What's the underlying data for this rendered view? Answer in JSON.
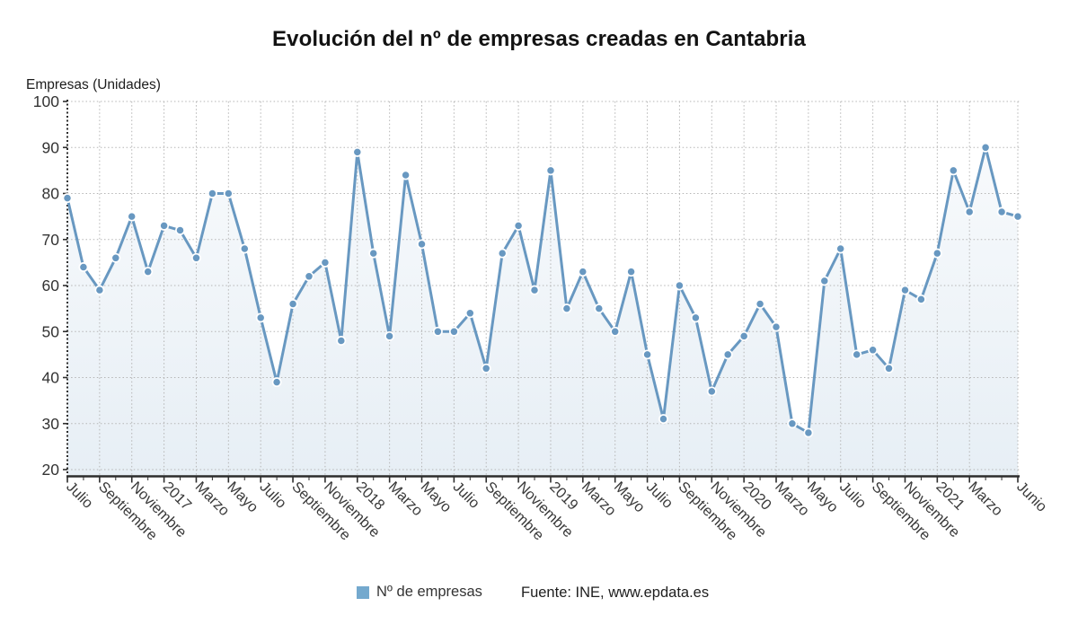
{
  "chart_data": {
    "type": "line",
    "title": "Evolución del nº de empresas creadas en Cantabria",
    "ylabel": "Empresas (Unidades)",
    "xlabel": "",
    "ylim": [
      20,
      100
    ],
    "y_ticks": [
      20,
      30,
      40,
      50,
      60,
      70,
      80,
      90,
      100
    ],
    "grid": true,
    "legend_position": "bottom",
    "series_name": "Nº de empresas",
    "n_points": 60,
    "x_range_note": "monthly points, Julio 2016 - Junio 2021",
    "values": [
      79,
      64,
      59,
      66,
      75,
      63,
      73,
      72,
      66,
      80,
      80,
      68,
      53,
      39,
      56,
      62,
      65,
      48,
      89,
      67,
      49,
      84,
      69,
      50,
      50,
      54,
      42,
      67,
      73,
      59,
      85,
      55,
      63,
      55,
      50,
      63,
      45,
      31,
      60,
      53,
      37,
      45,
      49,
      56,
      51,
      30,
      28,
      61,
      68,
      45,
      46,
      42,
      59,
      57,
      67,
      85,
      76,
      90,
      76,
      75
    ],
    "x_tick_labels": [
      {
        "i": 0,
        "label": "Julio"
      },
      {
        "i": 2,
        "label": "Septiembre"
      },
      {
        "i": 4,
        "label": "Noviembre"
      },
      {
        "i": 6,
        "label": "2017"
      },
      {
        "i": 8,
        "label": "Marzo"
      },
      {
        "i": 10,
        "label": "Mayo"
      },
      {
        "i": 12,
        "label": "Julio"
      },
      {
        "i": 14,
        "label": "Septiembre"
      },
      {
        "i": 16,
        "label": "Noviembre"
      },
      {
        "i": 18,
        "label": "2018"
      },
      {
        "i": 20,
        "label": "Marzo"
      },
      {
        "i": 22,
        "label": "Mayo"
      },
      {
        "i": 24,
        "label": "Julio"
      },
      {
        "i": 26,
        "label": "Septiembre"
      },
      {
        "i": 28,
        "label": "Noviembre"
      },
      {
        "i": 30,
        "label": "2019"
      },
      {
        "i": 32,
        "label": "Marzo"
      },
      {
        "i": 34,
        "label": "Mayo"
      },
      {
        "i": 36,
        "label": "Julio"
      },
      {
        "i": 38,
        "label": "Septiembre"
      },
      {
        "i": 40,
        "label": "Noviembre"
      },
      {
        "i": 42,
        "label": "2020"
      },
      {
        "i": 44,
        "label": "Marzo"
      },
      {
        "i": 46,
        "label": "Mayo"
      },
      {
        "i": 48,
        "label": "Julio"
      },
      {
        "i": 50,
        "label": "Septiembre"
      },
      {
        "i": 52,
        "label": "Noviembre"
      },
      {
        "i": 54,
        "label": "2021"
      },
      {
        "i": 56,
        "label": "Marzo"
      },
      {
        "i": 59,
        "label": "Junio"
      }
    ]
  },
  "legend": {
    "series_label": "Nº de empresas",
    "source_label": "Fuente: INE, www.epdata.es"
  },
  "colors": {
    "line": "#6898c1",
    "marker": "#6898c1",
    "marker_halo": "#ffffff",
    "legend_swatch": "#74a9ce",
    "grid": "#b5b5b5",
    "axis": "#2d2d2d",
    "area_tint": "#6898c1",
    "tick_text": "#3a3a3a",
    "y_tick_text": "#333333"
  }
}
